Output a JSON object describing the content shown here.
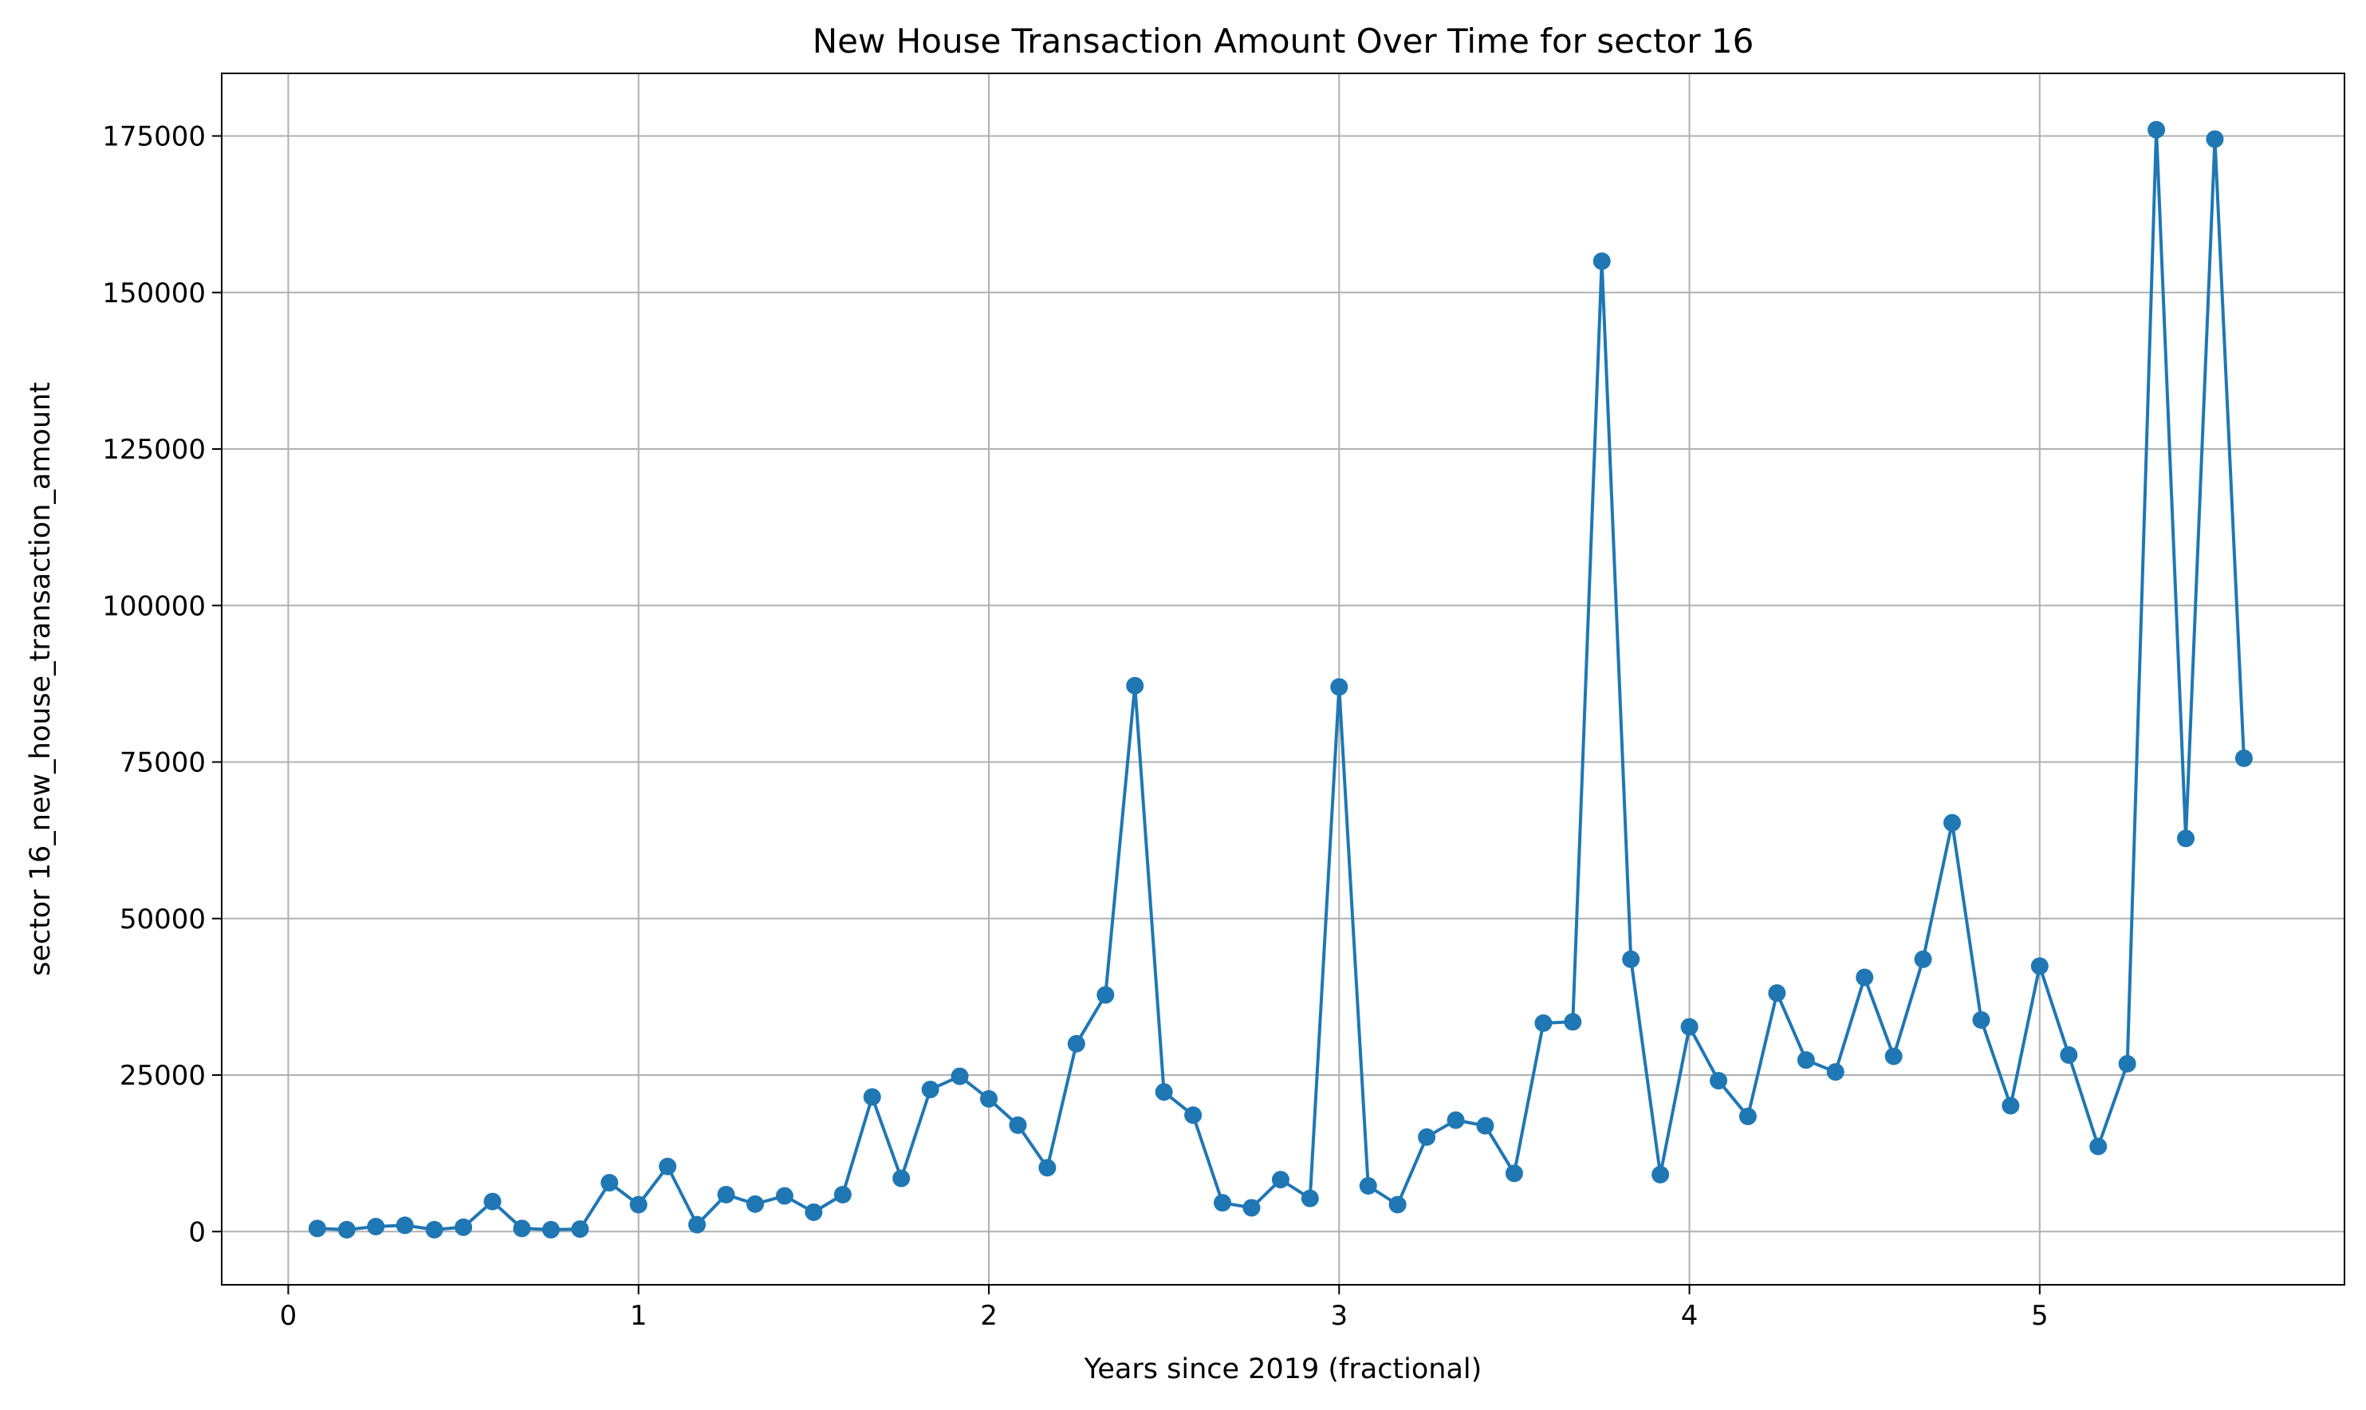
{
  "chart_data": {
    "type": "line",
    "title": "New House Transaction Amount Over Time for sector 16",
    "xlabel": "Years since 2019 (fractional)",
    "ylabel": "sector 16_new_house_transaction_amount",
    "xlim": [
      -0.19,
      5.87
    ],
    "ylim": [
      -8500,
      185000
    ],
    "x_ticks": [
      0,
      1,
      2,
      3,
      4,
      5
    ],
    "y_ticks": [
      0,
      25000,
      50000,
      75000,
      100000,
      125000,
      150000,
      175000
    ],
    "x_tick_labels": [
      "0",
      "1",
      "2",
      "3",
      "4",
      "5"
    ],
    "y_tick_labels": [
      "0",
      "25000",
      "50000",
      "75000",
      "100000",
      "125000",
      "150000",
      "175000"
    ],
    "grid": true,
    "legend": "none",
    "colors": {
      "line": "#1f77b4",
      "grid": "#b0b0b0",
      "axes": "#000000"
    },
    "series": [
      {
        "x": [
          0.083,
          0.167,
          0.25,
          0.333,
          0.417,
          0.5,
          0.583,
          0.667,
          0.75,
          0.833,
          0.917,
          1.0,
          1.083,
          1.167,
          1.25,
          1.333,
          1.417,
          1.5,
          1.583,
          1.667,
          1.75,
          1.833,
          1.917,
          2.0,
          2.083,
          2.167,
          2.25,
          2.333,
          2.417,
          2.5,
          2.583,
          2.667,
          2.75,
          2.833,
          2.917,
          3.0,
          3.083,
          3.167,
          3.25,
          3.333,
          3.417,
          3.5,
          3.583,
          3.667,
          3.75,
          3.833,
          3.917,
          4.0,
          4.083,
          4.167,
          4.25,
          4.333,
          4.417,
          4.5,
          4.583,
          4.667,
          4.75,
          4.833,
          4.917,
          5.0,
          5.083,
          5.167,
          5.25,
          5.333,
          5.417,
          5.5,
          5.583
        ],
        "values": [
          500,
          300,
          800,
          1000,
          300,
          700,
          4800,
          500,
          300,
          400,
          7800,
          4300,
          10400,
          1100,
          5900,
          4400,
          5700,
          3100,
          5900,
          21500,
          8500,
          22700,
          24800,
          21200,
          17000,
          10200,
          30000,
          37800,
          87200,
          22300,
          18600,
          4600,
          3800,
          8300,
          5300,
          87000,
          7300,
          4300,
          15100,
          17800,
          16900,
          9300,
          33300,
          33500,
          155000,
          43500,
          9100,
          32700,
          24100,
          18400,
          38100,
          27400,
          25500,
          40600,
          28000,
          43500,
          65300,
          33800,
          20100,
          42400,
          28200,
          13600,
          26800,
          176000,
          62800,
          174500,
          75600
        ]
      }
    ]
  }
}
